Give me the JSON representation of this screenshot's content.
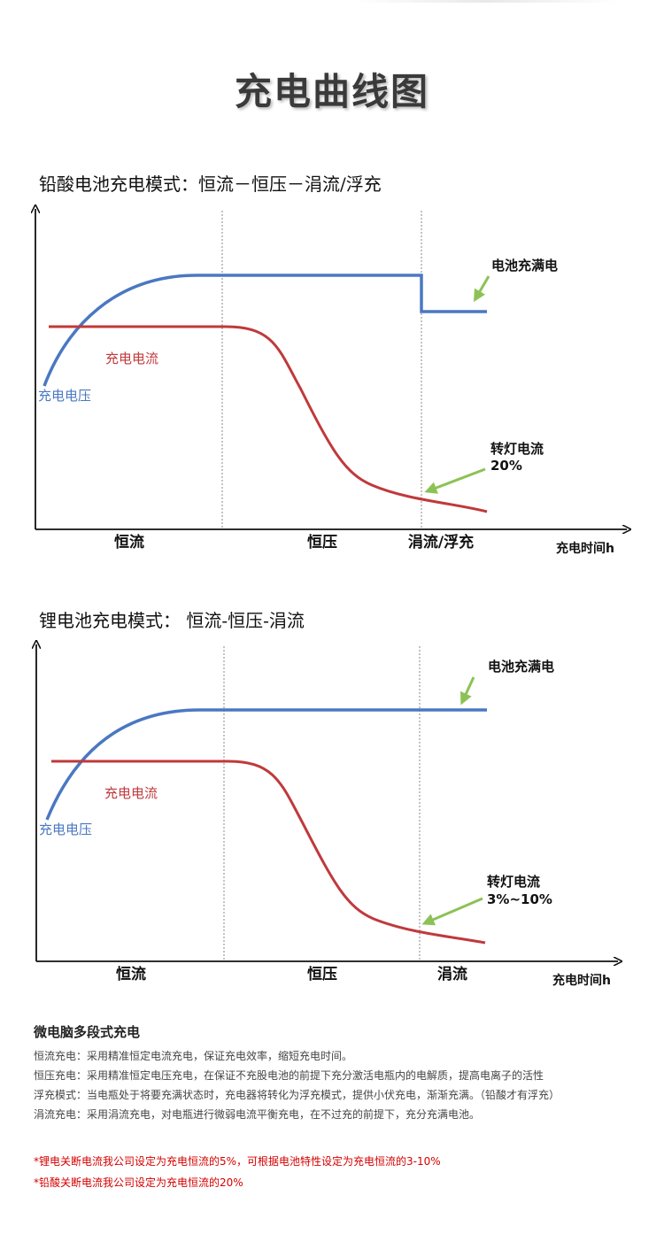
{
  "page_title": "充电曲线图",
  "charts": [
    {
      "title": "铅酸电池充电模式：恒流－恒压－涓流/浮充",
      "voltage_label": "充电电压",
      "current_label": "充电电流",
      "full_label": "电池充满电",
      "switch_label_line1": "转灯电流",
      "switch_label_line2": "20%",
      "phases": [
        "恒流",
        "恒压",
        "涓流/浮充"
      ],
      "x_axis_label": "充电时间h"
    },
    {
      "title": "锂电池充电模式：  恒流-恒压-涓流",
      "voltage_label": "充电电压",
      "current_label": "充电电流",
      "full_label": "电池充满电",
      "switch_label_line1": "转灯电流",
      "switch_label_line2": "3%~10%",
      "phases": [
        "恒流",
        "恒压",
        "涓流"
      ],
      "x_axis_label": "充电时间h"
    }
  ],
  "notes": {
    "heading": "微电脑多段式充电",
    "lines": [
      "恒流充电：采用精准恒定电流充电，保证充电效率，缩短充电时间。",
      "恒压充电：采用精准恒定电压充电，在保证不充股电池的前提下充分激活电瓶内的电解质，提高电离子的活性",
      "浮充模式：当电瓶处于将要充满状态时，充电器将转化为浮充模式，提供小伏充电，渐渐充满。（铅酸才有浮充）",
      "涓流充电：采用涓流充电，对电瓶进行微弱电流平衡充电，在不过充的前提下，充分充满电池。"
    ]
  },
  "red_notes": [
    "*锂电关断电流我公司设定为充电恒流的5%，可根据电池特性设定为充电恒流的3-10%",
    "*铅酸关断电流我公司设定为充电恒流的20%"
  ],
  "colors": {
    "voltage": "#4a78c2",
    "current": "#c0393b",
    "arrow": "#8cc255",
    "axis": "#111111",
    "divider": "#888888",
    "red_note": "#d40000"
  }
}
